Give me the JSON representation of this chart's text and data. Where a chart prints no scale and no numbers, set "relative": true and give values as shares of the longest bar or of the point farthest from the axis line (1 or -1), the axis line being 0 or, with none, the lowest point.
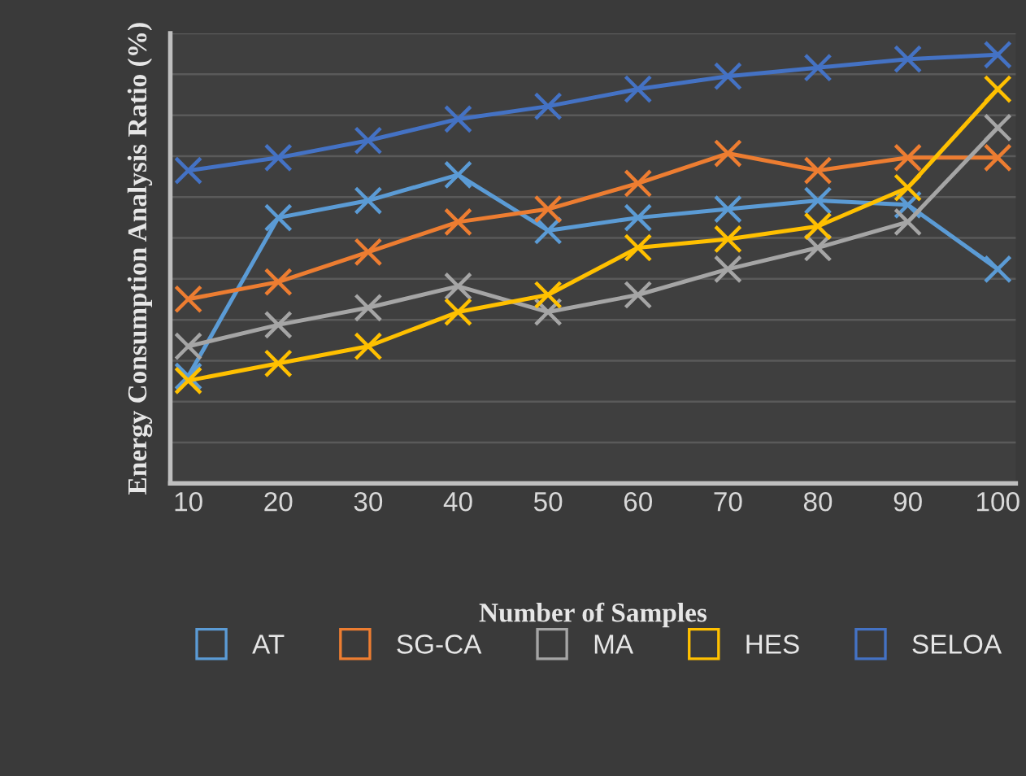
{
  "chart_data": {
    "type": "line",
    "relative": true,
    "xlabel": "Number of Samples",
    "ylabel": "Energy Consumption Analysis Ratio (%)",
    "categories": [
      "10",
      "20",
      "30",
      "40",
      "50",
      "60",
      "70",
      "80",
      "90",
      "100"
    ],
    "series": [
      {
        "name": "AT",
        "color": "#5b9bd5",
        "values": [
          0.25,
          0.62,
          0.66,
          0.72,
          0.59,
          0.62,
          0.64,
          0.66,
          0.65,
          0.5
        ]
      },
      {
        "name": "SG-CA",
        "color": "#ed7d31",
        "values": [
          0.43,
          0.47,
          0.54,
          0.61,
          0.64,
          0.7,
          0.77,
          0.73,
          0.76,
          0.76
        ]
      },
      {
        "name": "MA",
        "color": "#a5a5a5",
        "values": [
          0.32,
          0.37,
          0.41,
          0.46,
          0.4,
          0.44,
          0.5,
          0.55,
          0.61,
          0.83
        ]
      },
      {
        "name": "HES",
        "color": "#ffc000",
        "values": [
          0.24,
          0.28,
          0.32,
          0.4,
          0.44,
          0.55,
          0.57,
          0.6,
          0.69,
          0.92
        ]
      },
      {
        "name": "SELOA",
        "color": "#4472c4",
        "values": [
          0.73,
          0.76,
          0.8,
          0.85,
          0.88,
          0.92,
          0.95,
          0.97,
          0.99,
          1.0
        ]
      }
    ],
    "marker": "cross",
    "line_style": "solid",
    "grid": "y",
    "legend": "bottom"
  }
}
